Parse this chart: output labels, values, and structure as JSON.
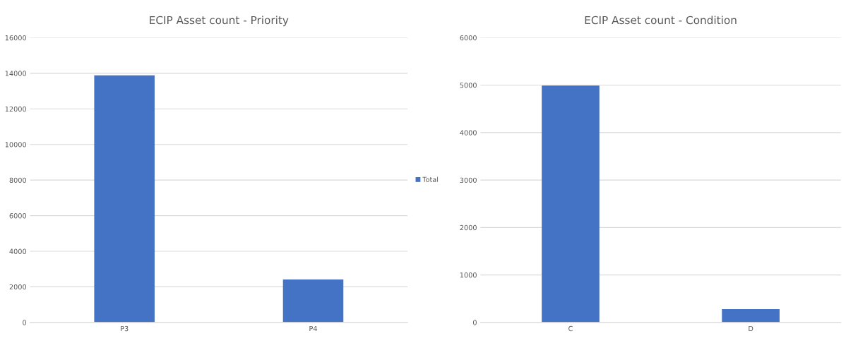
{
  "chart_data": [
    {
      "type": "bar",
      "title": "ECIP Asset count - Priority",
      "categories": [
        "P3",
        "P4"
      ],
      "series": [
        {
          "name": "Total",
          "color": "#4472c4",
          "values": [
            13890,
            2410
          ]
        }
      ],
      "ylim": [
        0,
        16000
      ],
      "yticks": [
        0,
        2000,
        4000,
        6000,
        8000,
        10000,
        12000,
        14000,
        16000
      ],
      "grid": "y",
      "legend": "right"
    },
    {
      "type": "bar",
      "title": "ECIP Asset count - Condition",
      "categories": [
        "C",
        "D"
      ],
      "series": [
        {
          "color": "#4472c4",
          "values": [
            4990,
            280
          ]
        }
      ],
      "ylim": [
        0,
        6000
      ],
      "yticks": [
        0,
        1000,
        2000,
        3000,
        4000,
        5000,
        6000
      ],
      "grid": "y"
    }
  ]
}
